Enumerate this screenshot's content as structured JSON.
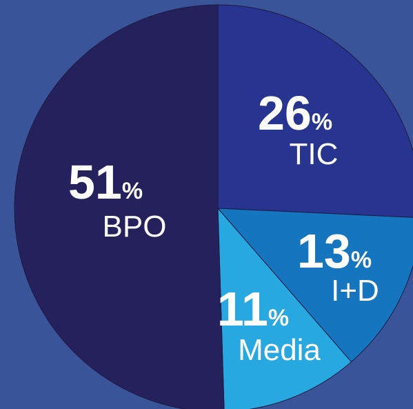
{
  "chart_data": {
    "type": "pie",
    "categories": [
      "TIC",
      "I+D",
      "Media",
      "BPO"
    ],
    "values": [
      26,
      13,
      11,
      51
    ],
    "value_labels": [
      "26%",
      "13%",
      "11%",
      "51%"
    ],
    "colors": [
      "#283590",
      "#1576bf",
      "#27a8e0",
      "#25215d"
    ]
  }
}
